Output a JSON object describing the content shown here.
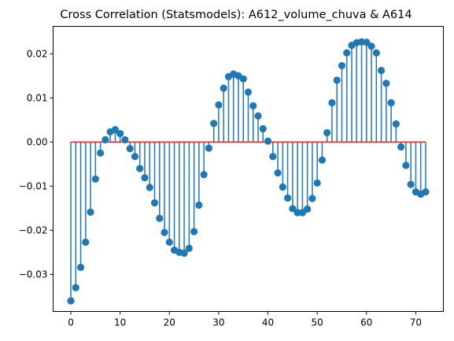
{
  "chart_data": {
    "type": "stem",
    "title": "Cross Correlation (Statsmodels): A612_volume_chuva & A614",
    "xlabel": "",
    "ylabel": "",
    "xlim": [
      -3.6,
      75.6
    ],
    "ylim": [
      -0.0384,
      0.0262
    ],
    "xticks": [
      0,
      10,
      20,
      30,
      40,
      50,
      60,
      70
    ],
    "yticks": [
      -0.03,
      -0.02,
      -0.01,
      0.0,
      0.01,
      0.02
    ],
    "ytick_labels": [
      "−0.03",
      "−0.02",
      "−0.01",
      "0.00",
      "0.01",
      "0.02"
    ],
    "baseline": 0,
    "grid": false,
    "colors": {
      "stem": "#1f77b4",
      "marker": "#1f77b4",
      "baseline": "#d62728"
    },
    "x": [
      0,
      1,
      2,
      3,
      4,
      5,
      6,
      7,
      8,
      9,
      10,
      11,
      12,
      13,
      14,
      15,
      16,
      17,
      18,
      19,
      20,
      21,
      22,
      23,
      24,
      25,
      26,
      27,
      28,
      29,
      30,
      31,
      32,
      33,
      34,
      35,
      36,
      37,
      38,
      39,
      40,
      41,
      42,
      43,
      44,
      45,
      46,
      47,
      48,
      49,
      50,
      51,
      52,
      53,
      54,
      55,
      56,
      57,
      58,
      59,
      60,
      61,
      62,
      63,
      64,
      65,
      66,
      67,
      68,
      69,
      70,
      71,
      72
    ],
    "values": [
      -0.036,
      -0.033,
      -0.0284,
      -0.0227,
      -0.0159,
      -0.0084,
      -0.0025,
      0.0005,
      0.0023,
      0.0028,
      0.0019,
      0.0005,
      -0.0015,
      -0.0033,
      -0.006,
      -0.0081,
      -0.0103,
      -0.0138,
      -0.0173,
      -0.0205,
      -0.0227,
      -0.0245,
      -0.025,
      -0.0252,
      -0.0241,
      -0.0203,
      -0.0143,
      -0.0074,
      -0.0014,
      0.0042,
      0.0084,
      0.0122,
      0.0148,
      0.0154,
      0.015,
      0.0143,
      0.0113,
      0.0082,
      0.0059,
      0.003,
      0.0002,
      -0.0033,
      -0.007,
      -0.0102,
      -0.0127,
      -0.0151,
      -0.016,
      -0.016,
      -0.0152,
      -0.0128,
      -0.0093,
      -0.0041,
      0.0021,
      0.0089,
      0.014,
      0.0173,
      0.0202,
      0.0219,
      0.0225,
      0.0227,
      0.0226,
      0.0217,
      0.0202,
      0.0162,
      0.0133,
      0.0089,
      0.0041,
      -0.0011,
      -0.0053,
      -0.0096,
      -0.0113,
      -0.0118,
      -0.0113
    ]
  }
}
